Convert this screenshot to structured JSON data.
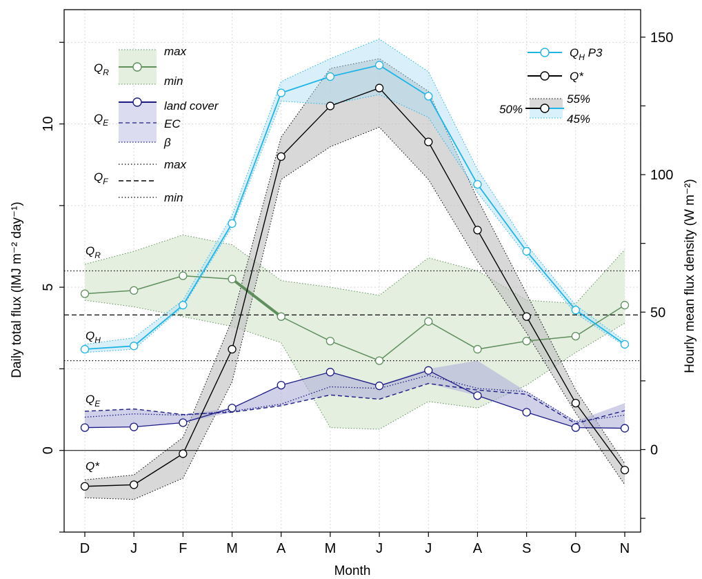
{
  "chart_data": {
    "type": "line",
    "xlabel": "Month",
    "ylabel_left": "Daily total flux (lMJ m⁻² day⁻¹)",
    "ylabel_right": "Hourly mean flux density (W m⁻²)",
    "categories": [
      "D",
      "J",
      "F",
      "M",
      "A",
      "M",
      "J",
      "J",
      "A",
      "S",
      "O",
      "N"
    ],
    "ylim_left": [
      -2.5,
      13.5
    ],
    "left_ticks": [
      0,
      5,
      10
    ],
    "right_axis": {
      "ylim": [
        -30,
        160
      ],
      "ticks": [
        0,
        50,
        100,
        150
      ]
    },
    "grid": true,
    "colors": {
      "QH": "#1fb4e8",
      "QH_band": "#d9f1fb",
      "Qstar": "#000000",
      "Qstar_band": "#d9d9d9",
      "QR": "#5e8f5c",
      "QR_band": "#e4efe0",
      "QE": "#1b1b86",
      "QE_band": "#d9d9ee"
    },
    "series": [
      {
        "key": "QH",
        "name": "Q_H P3",
        "values": [
          3.1,
          3.2,
          4.45,
          6.95,
          10.95,
          11.45,
          11.8,
          10.85,
          8.15,
          6.1,
          4.3,
          3.25
        ],
        "band_upper": [
          3.25,
          3.45,
          4.6,
          7.2,
          11.3,
          12.0,
          12.6,
          11.6,
          8.6,
          6.3,
          4.45,
          3.35
        ],
        "band_lower": [
          3.0,
          3.1,
          4.4,
          6.85,
          10.7,
          10.6,
          10.9,
          10.2,
          7.9,
          5.95,
          4.2,
          3.2
        ]
      },
      {
        "key": "Qstar",
        "name": "Q*",
        "values": [
          -1.1,
          -1.05,
          -0.1,
          3.1,
          9.0,
          10.55,
          11.1,
          9.45,
          6.75,
          4.1,
          1.45,
          -0.6
        ],
        "band_upper": [
          -0.9,
          -0.75,
          0.4,
          4.0,
          9.6,
          11.7,
          12.0,
          11.0,
          7.7,
          4.8,
          1.85,
          -0.4
        ],
        "band_lower": [
          -1.45,
          -1.5,
          -0.85,
          2.1,
          8.3,
          9.3,
          9.9,
          8.3,
          5.8,
          3.6,
          1.15,
          -1.05
        ]
      },
      {
        "key": "QR",
        "name": "Q_R",
        "values": [
          4.8,
          4.9,
          5.35,
          5.25,
          4.1,
          3.35,
          2.75,
          3.95,
          3.1,
          3.35,
          3.5,
          4.45
        ],
        "band_upper": [
          5.7,
          6.1,
          6.6,
          6.3,
          5.2,
          5.0,
          4.75,
          5.9,
          5.5,
          4.6,
          4.5,
          6.15
        ],
        "band_lower": [
          4.6,
          4.4,
          4.1,
          3.8,
          3.3,
          0.7,
          0.65,
          1.5,
          1.3,
          2.0,
          3.0,
          3.9
        ]
      },
      {
        "key": "QE",
        "name": "Q_E land cover",
        "values": [
          0.7,
          0.72,
          0.85,
          1.3,
          2.0,
          2.4,
          1.98,
          2.45,
          1.68,
          1.17,
          0.7,
          0.68
        ],
        "ec": [
          1.2,
          1.27,
          1.1,
          1.17,
          1.37,
          1.7,
          1.57,
          2.05,
          1.85,
          1.72,
          0.82,
          1.22
        ],
        "beta": [
          1.02,
          1.12,
          1.08,
          1.2,
          1.42,
          1.95,
          1.9,
          2.3,
          1.9,
          1.8,
          0.88,
          1.08
        ],
        "band_upper": [
          1.2,
          1.27,
          1.1,
          1.3,
          2.0,
          2.4,
          2.0,
          2.5,
          2.75,
          1.8,
          0.9,
          1.45
        ],
        "band_lower": [
          0.7,
          0.72,
          0.85,
          1.17,
          1.37,
          1.7,
          1.57,
          2.05,
          1.68,
          1.17,
          0.7,
          0.68
        ]
      }
    ],
    "hlines": [
      {
        "y": 5.5,
        "style": "dotted"
      },
      {
        "y": 4.15,
        "style": "dashed"
      },
      {
        "y": 2.75,
        "style": "dotted"
      },
      {
        "y": 0,
        "style": "solid"
      }
    ],
    "inline_labels": [
      {
        "key": "QR",
        "text": "Q",
        "sub": "R",
        "y": 6.0
      },
      {
        "key": "QH",
        "text": "Q",
        "sub": "H",
        "y": 3.4
      },
      {
        "key": "QE",
        "text": "Q",
        "sub": "E",
        "y": 1.45
      },
      {
        "key": "Qs",
        "text": "Q*",
        "sub": "",
        "y": -0.6
      }
    ],
    "legend_left": {
      "qr": {
        "label": "Q",
        "sub": "R",
        "max": "max",
        "min": "min"
      },
      "qe": {
        "label": "Q",
        "sub": "E",
        "land_cover": "land cover",
        "ec": "EC",
        "beta": "β"
      },
      "qf": {
        "label": "Q",
        "sub": "F",
        "max": "max",
        "min": "min"
      }
    },
    "legend_right": {
      "qh": {
        "label": "Q",
        "sub": "H",
        "suffix": " P3"
      },
      "qstar": {
        "label": "Q*"
      },
      "pct50": "50%",
      "pct55": "55%",
      "pct45": "45%"
    }
  }
}
